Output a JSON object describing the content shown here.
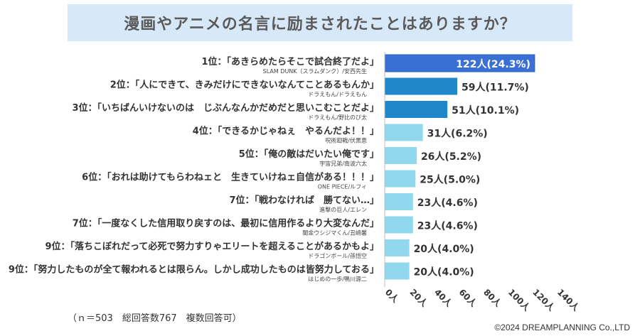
{
  "title": "漫画やアニメの名言に励まされたことはありますか？",
  "footnote": "（ｎ＝503　総回答数767　複数回答可）",
  "copyright": "©2024 DREAMPLANNING Co.,LTD",
  "colors": {
    "title_band": "#d7e9f8",
    "bar_top": "#3a6fd4",
    "bar_dark": "#1f87c9",
    "bar_light": "#8fd8ee"
  },
  "chart_data": {
    "type": "bar",
    "orientation": "horizontal",
    "x_axis": {
      "min": 0,
      "max": 140,
      "ticks": [
        "0人",
        "20人",
        "40人",
        "60人",
        "80人",
        "100人",
        "120人",
        "140人"
      ]
    },
    "grid": false,
    "rows": [
      {
        "rank": "1位",
        "quote": "「あきらめたらそこで試合終了だよ」",
        "source": "SLAM DUNK（スラムダンク）/安西先生",
        "value": 122,
        "label": "122人(24.3%)",
        "style": "top"
      },
      {
        "rank": "2位",
        "quote": "「人にできて、きみだけにできないなんてことあるもんか」",
        "source": "ドラえもん/ドラえもん",
        "value": 59,
        "label": "59人(11.7%)",
        "style": "dark"
      },
      {
        "rank": "3位",
        "quote": "「いちばんいけないのは　じぶんなんかだめだと思いこむことだよ」",
        "source": "ドラえもん/野比のび太",
        "value": 51,
        "label": "51人(10.1%)",
        "style": "dark"
      },
      {
        "rank": "4位",
        "quote": "「できるかじゃねぇ　やるんだよ！！」",
        "source": "呪術廻戦/伏黒恵",
        "value": 31,
        "label": "31人(6.2%)",
        "style": "light"
      },
      {
        "rank": "5位",
        "quote": "「俺の敵はだいたい俺です」",
        "source": "宇宙兄弟/南波六太",
        "value": 26,
        "label": "26人(5.2%)",
        "style": "light"
      },
      {
        "rank": "6位",
        "quote": "「おれは助けてもらわねェと　生きていけねェ自信がある！！！」",
        "source": "ONE PIECE/ルフィ",
        "value": 25,
        "label": "25人(5.0%)",
        "style": "light"
      },
      {
        "rank": "7位",
        "quote": "「戦わなければ　勝てない…」",
        "source": "進撃の巨人/エレン",
        "value": 23,
        "label": "23人(4.6%)",
        "style": "light"
      },
      {
        "rank": "7位",
        "quote": "「一度なくした信用取り戻すのは、最初に信用作るより大変なんだ」",
        "source": "闇金ウシジマくん/丑嶋馨",
        "value": 23,
        "label": "23人(4.6%)",
        "style": "light"
      },
      {
        "rank": "9位",
        "quote": "「落ちこぼれだって必死で努力すりゃエリートを超えることがあるかもよ」",
        "source": "ドラゴンボール/孫悟空",
        "value": 20,
        "label": "20人(4.0%)",
        "style": "light"
      },
      {
        "rank": "9位",
        "quote": "「努力したものが全て報われるとは限らん。しかし成功したものは皆努力しておる」",
        "source": "はじめの一歩/鴨川源二",
        "value": 20,
        "label": "20人(4.0%)",
        "style": "light"
      }
    ]
  }
}
